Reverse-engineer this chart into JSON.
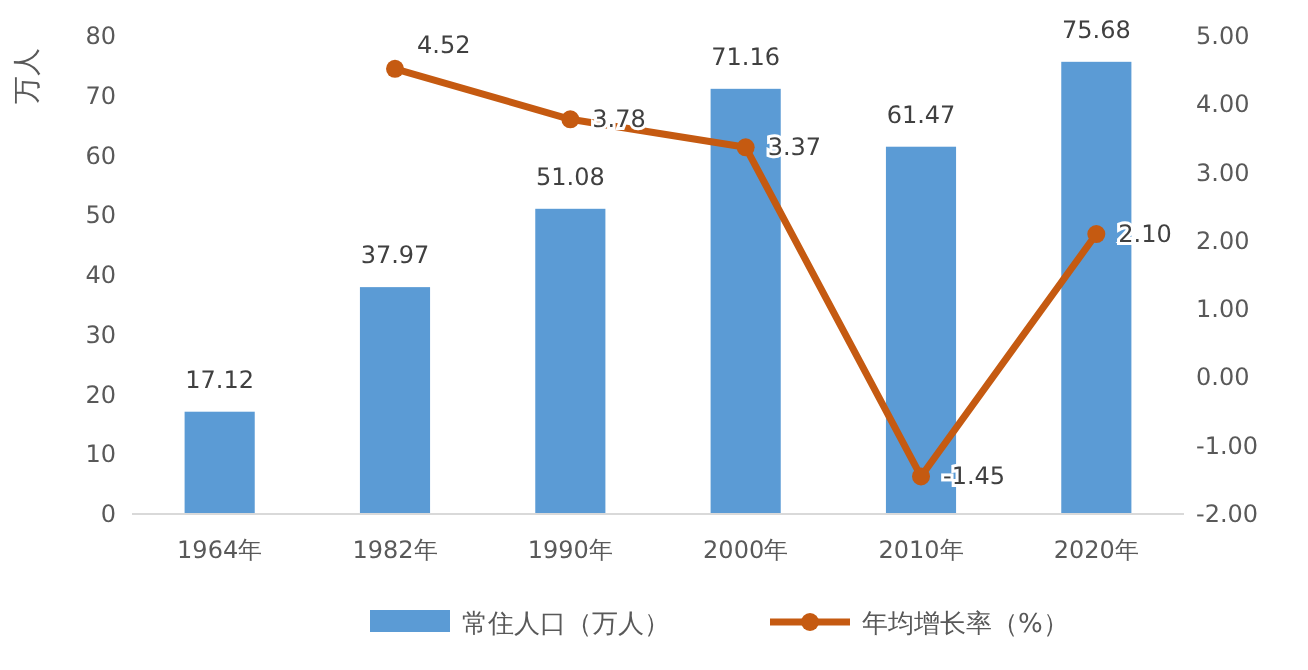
{
  "chart_data": {
    "type": "bar",
    "ylabel": "万人",
    "categories": [
      "1964年",
      "1982年",
      "1990年",
      "2000年",
      "2010年",
      "2020年"
    ],
    "series": [
      {
        "name": "常住人口（万人）",
        "color": "#5b9bd5",
        "values": [
          17.12,
          37.97,
          51.08,
          71.16,
          61.47,
          75.68
        ],
        "value_labels": [
          "17.12",
          "37.97",
          "51.08",
          "71.16",
          "61.47",
          "75.68"
        ]
      },
      {
        "name": "年均增长率（%）",
        "type": "line",
        "axis": "y2",
        "color": "#c55a11",
        "marker": "circle",
        "values": [
          null,
          4.52,
          3.78,
          3.37,
          -1.45,
          2.1
        ],
        "value_labels": [
          null,
          "4.52",
          "3.78",
          "3.37",
          "-1.45",
          "2.10"
        ]
      }
    ],
    "ylim": [
      0,
      80
    ],
    "yticks": [
      0,
      10,
      20,
      30,
      40,
      50,
      60,
      70,
      80
    ],
    "y2lim": [
      -2,
      5
    ],
    "y2ticks": [
      {
        "value": -2,
        "label": "-2.00"
      },
      {
        "value": -1,
        "label": "-1.00"
      },
      {
        "value": 0,
        "label": "0.00"
      },
      {
        "value": 1,
        "label": "1.00"
      },
      {
        "value": 2,
        "label": "2.00"
      },
      {
        "value": 3,
        "label": "3.00"
      },
      {
        "value": 4,
        "label": "4.00"
      },
      {
        "value": 5,
        "label": "5.00"
      }
    ],
    "legend": "bottom"
  }
}
